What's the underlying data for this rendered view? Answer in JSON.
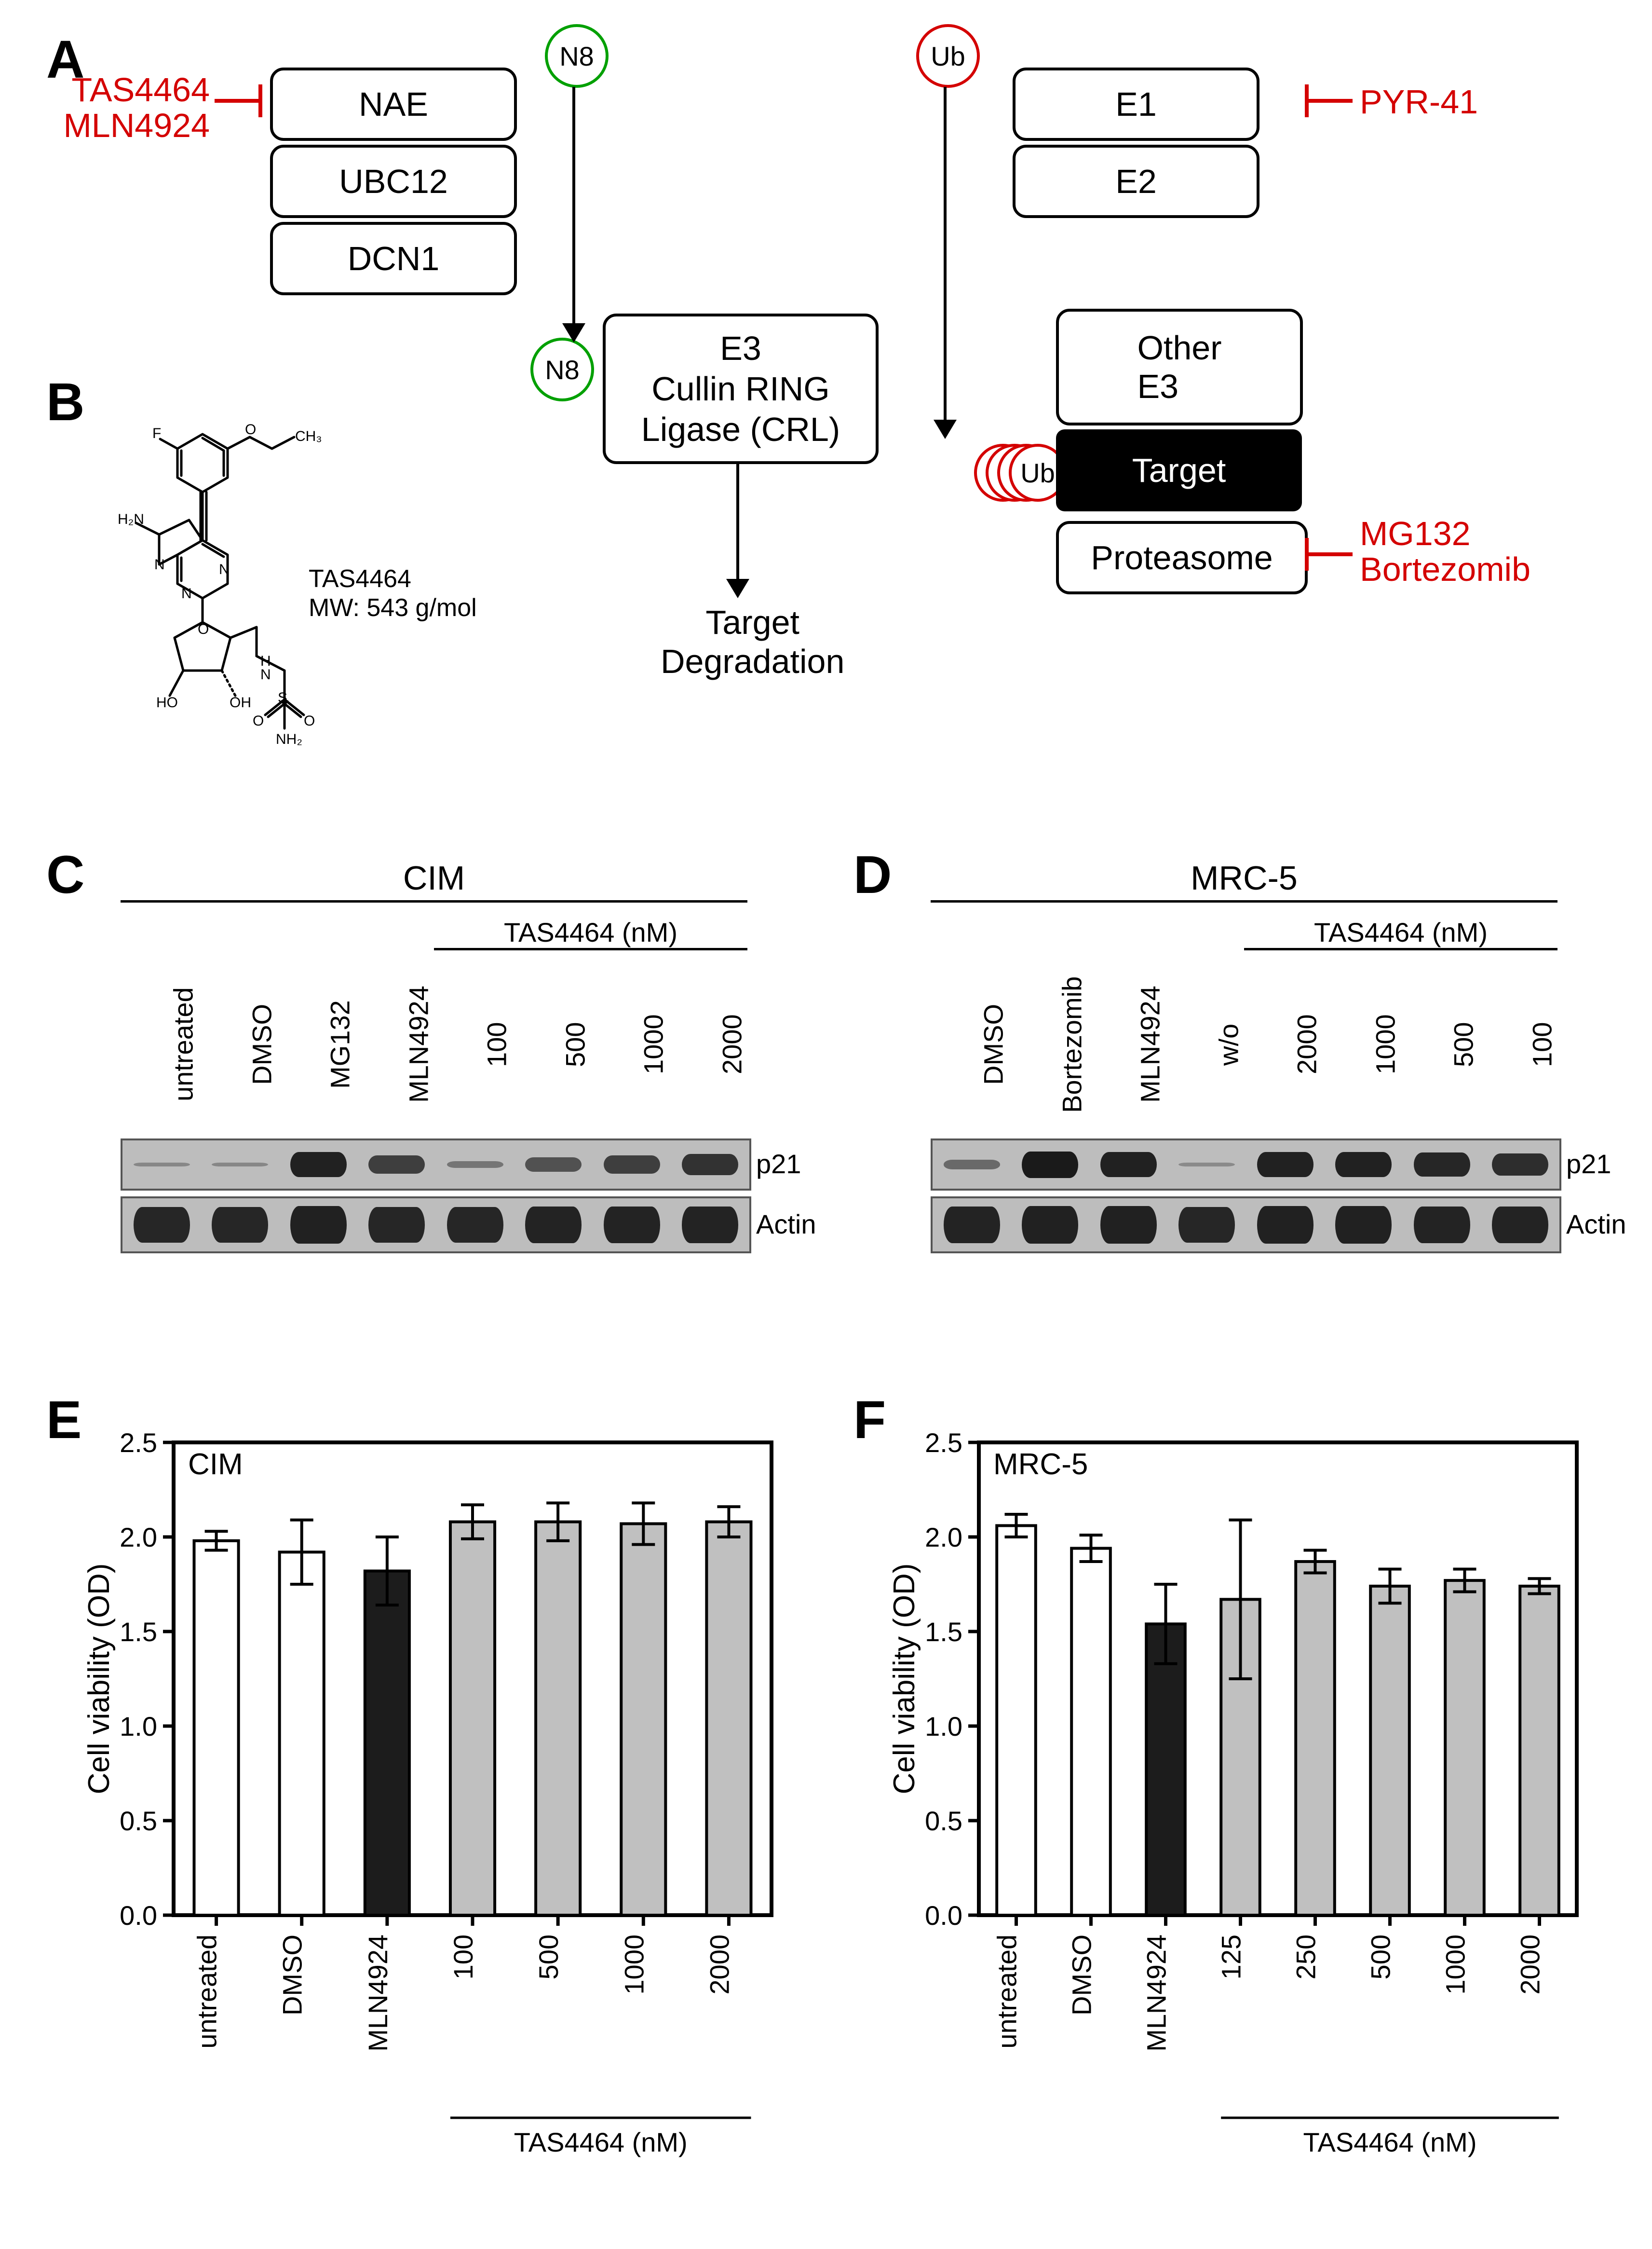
{
  "letters": {
    "A": "A",
    "B": "B",
    "C": "C",
    "D": "D",
    "E": "E",
    "F": "F"
  },
  "colors": {
    "inhibitor": "#d40000",
    "n8": "#00a000",
    "ub": "#d40000",
    "black": "#000000",
    "grey": "#c0c0c0",
    "darkbar": "#1c1c1c",
    "white": "#ffffff"
  },
  "panelA": {
    "leftBoxes": [
      "NAE",
      "UBC12",
      "DCN1"
    ],
    "rightBoxes": [
      "E1",
      "E2"
    ],
    "crlLabel": "E3\nCullin RING\nLigase (CRL)",
    "otherE3": "Other\nE3",
    "target": "Target",
    "proteasome": "Proteasome",
    "targetDeg": "Target\nDegradation",
    "n8": "N8",
    "ub": "Ub",
    "inhibLeft": "TAS4464\nMLN4924",
    "inhibRight": "PYR-41",
    "inhibProt": "MG132\nBortezomib"
  },
  "panelB": {
    "label": "TAS4464\nMW: 543 g/mol"
  },
  "panelC": {
    "title": "CIM",
    "lanes": [
      "untreated",
      "DMSO",
      "MG132",
      "MLN4924",
      "100",
      "500",
      "1000",
      "2000"
    ],
    "tasLabel": "TAS4464 (nM)",
    "tracks": [
      "p21",
      "Actin"
    ],
    "p21": [
      0.1,
      0.1,
      0.95,
      0.7,
      0.25,
      0.55,
      0.7,
      0.8
    ],
    "actin": [
      0.9,
      0.9,
      0.95,
      0.9,
      0.9,
      0.92,
      0.92,
      0.92
    ]
  },
  "panelD": {
    "title": "MRC-5",
    "lanes": [
      "DMSO",
      "Bortezomib",
      "MLN4924",
      "w/o",
      "2000",
      "1000",
      "500",
      "100"
    ],
    "tasLabel": "TAS4464 (nM)",
    "tracks": [
      "p21",
      "Actin"
    ],
    "p21": [
      0.35,
      1.0,
      0.95,
      0.08,
      0.95,
      0.95,
      0.9,
      0.85
    ],
    "actin": [
      0.92,
      0.95,
      0.95,
      0.9,
      0.95,
      0.95,
      0.92,
      0.92
    ]
  },
  "chartCommon": {
    "ylabel": "Cell viability (OD)",
    "ymin": 0,
    "ymax": 2.5,
    "ystep": 0.5,
    "barWidth": 0.52,
    "axisColor": "#000000",
    "tickFontsize": 56,
    "labelFontsize": 62
  },
  "panelE": {
    "title": "CIM",
    "cats": [
      "untreated",
      "DMSO",
      "MLN4924",
      "100",
      "500",
      "1000",
      "2000"
    ],
    "vals": [
      1.98,
      1.92,
      1.82,
      2.08,
      2.08,
      2.07,
      2.08
    ],
    "errs": [
      0.05,
      0.17,
      0.18,
      0.09,
      0.1,
      0.11,
      0.08
    ],
    "fills": [
      "white",
      "white",
      "black",
      "grey",
      "grey",
      "grey",
      "grey"
    ],
    "tasLabel": "TAS4464 (nM)",
    "tasFrom": 3,
    "tasTo": 6
  },
  "panelF": {
    "title": "MRC-5",
    "cats": [
      "untreated",
      "DMSO",
      "MLN4924",
      "125",
      "250",
      "500",
      "1000",
      "2000"
    ],
    "vals": [
      2.06,
      1.94,
      1.54,
      1.67,
      1.87,
      1.74,
      1.77,
      1.74
    ],
    "errs": [
      0.06,
      0.07,
      0.21,
      0.42,
      0.06,
      0.09,
      0.06,
      0.04
    ],
    "fills": [
      "white",
      "white",
      "black",
      "grey",
      "grey",
      "grey",
      "grey",
      "grey"
    ],
    "tasLabel": "TAS4464 (nM)",
    "tasFrom": 3,
    "tasTo": 7
  }
}
